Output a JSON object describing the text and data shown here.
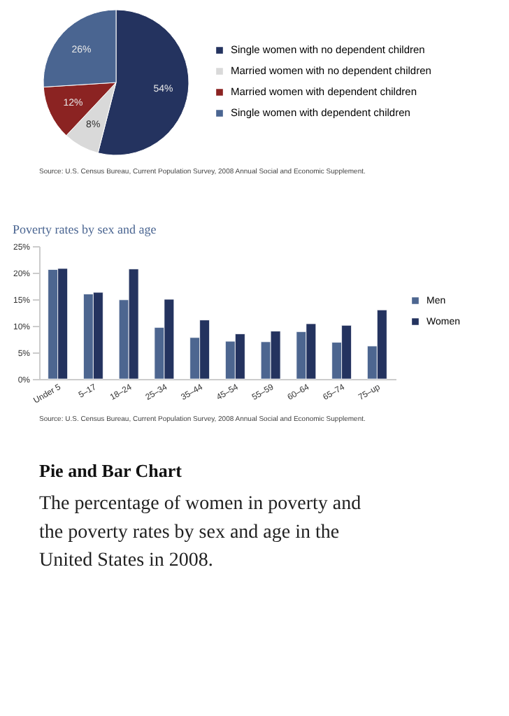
{
  "chart_data": [
    {
      "type": "pie",
      "categories": [
        "Single women with no dependent children",
        "Married women with no dependent children",
        "Married women with dependent children",
        "Single women with dependent children"
      ],
      "values": [
        54,
        8,
        12,
        26
      ],
      "colors": [
        "#24335f",
        "#d9d9d9",
        "#8b2322",
        "#4a6591"
      ],
      "value_labels": [
        "54%",
        "8%",
        "12%",
        "26%"
      ],
      "legend": "right",
      "annotations": [
        "Source: U.S. Census Bureau, Current Population Survey, 2008 Annual Social and Economic Supplement."
      ]
    },
    {
      "type": "bar",
      "title": "Poverty rates by sex and age",
      "categories": [
        "Under 5",
        "5–17",
        "18–24",
        "25–34",
        "35–44",
        "45–54",
        "55–59",
        "60–64",
        "65–74",
        "75–up"
      ],
      "series": [
        {
          "name": "Men",
          "color": "#4d6690",
          "values": [
            20.6,
            16.0,
            14.9,
            9.7,
            7.8,
            7.1,
            7.0,
            8.9,
            6.9,
            6.2
          ]
        },
        {
          "name": "Women",
          "color": "#24335f",
          "values": [
            20.8,
            16.3,
            20.7,
            15.0,
            11.1,
            8.5,
            9.0,
            10.4,
            10.1,
            13.0
          ]
        }
      ],
      "ylim": [
        0,
        25
      ],
      "yticks": [
        {
          "value": 0,
          "label": "0%"
        },
        {
          "value": 5,
          "label": "5%"
        },
        {
          "value": 10,
          "label": "10%"
        },
        {
          "value": 15,
          "label": "15%"
        },
        {
          "value": 20,
          "label": "20%"
        },
        {
          "value": 25,
          "label": "25%"
        }
      ],
      "grid": false,
      "legend": "right",
      "annotations": [
        "Source: U.S. Census Bureau, Current Population Survey, 2008 Annual Social and Economic Supplement.",
        "Pie and Bar Chart",
        "The percentage of women in poverty and the poverty rates by sex and age in the United States in 2008."
      ]
    }
  ]
}
